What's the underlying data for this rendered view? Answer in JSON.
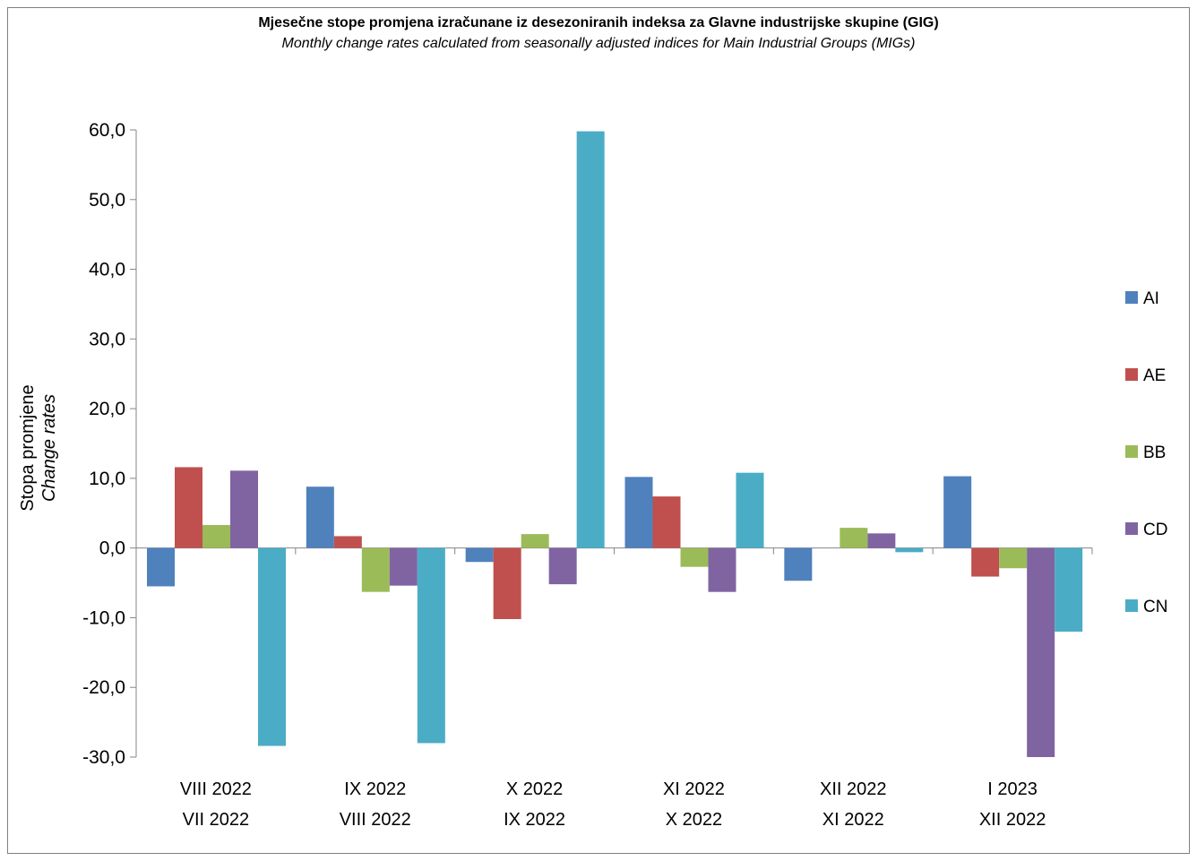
{
  "chart_data": {
    "type": "bar",
    "title": "Mjesečne stope promjena izračunane iz desezoniranih indeksa za Glavne industrijske skupine (GIG)",
    "subtitle": "Monthly change rates calculated from seasonally adjusted indices for Main Industrial Groups (MIGs)",
    "ylabel": "Stopa promjene",
    "ylabel_secondary": "Change rates",
    "ylim": [
      -30,
      60
    ],
    "yticks": [
      "60,0",
      "50,0",
      "40,0",
      "30,0",
      "20,0",
      "10,0",
      "0,0",
      "-10,0",
      "-20,0",
      "-30,0"
    ],
    "ytick_values": [
      60,
      50,
      40,
      30,
      20,
      10,
      0,
      -10,
      -20,
      -30
    ],
    "categories": [
      [
        "VIII 2022",
        "VII 2022"
      ],
      [
        "IX 2022",
        "VIII 2022"
      ],
      [
        "X 2022",
        "IX 2022"
      ],
      [
        "XI 2022",
        "X 2022"
      ],
      [
        "XII 2022",
        "XI 2022"
      ],
      [
        "I 2023",
        "XII 2022"
      ]
    ],
    "series": [
      {
        "name": "AI",
        "color": "#4F81BD",
        "values": [
          -5.5,
          8.8,
          -2.0,
          10.2,
          -4.7,
          10.3
        ]
      },
      {
        "name": "AE",
        "color": "#C0504D",
        "values": [
          11.6,
          1.7,
          -10.2,
          7.4,
          0.0,
          -4.1
        ]
      },
      {
        "name": "BB",
        "color": "#9BBB59",
        "values": [
          3.3,
          -6.3,
          2.0,
          -2.7,
          2.9,
          -2.9
        ]
      },
      {
        "name": "CD",
        "color": "#8064A2",
        "values": [
          11.1,
          -5.4,
          -5.2,
          -6.3,
          2.1,
          -30.0
        ]
      },
      {
        "name": "CN",
        "color": "#4BACC6",
        "values": [
          -28.4,
          -28.0,
          59.8,
          10.8,
          -0.6,
          -12.0
        ]
      }
    ],
    "legend_position": "right",
    "grid": false
  }
}
